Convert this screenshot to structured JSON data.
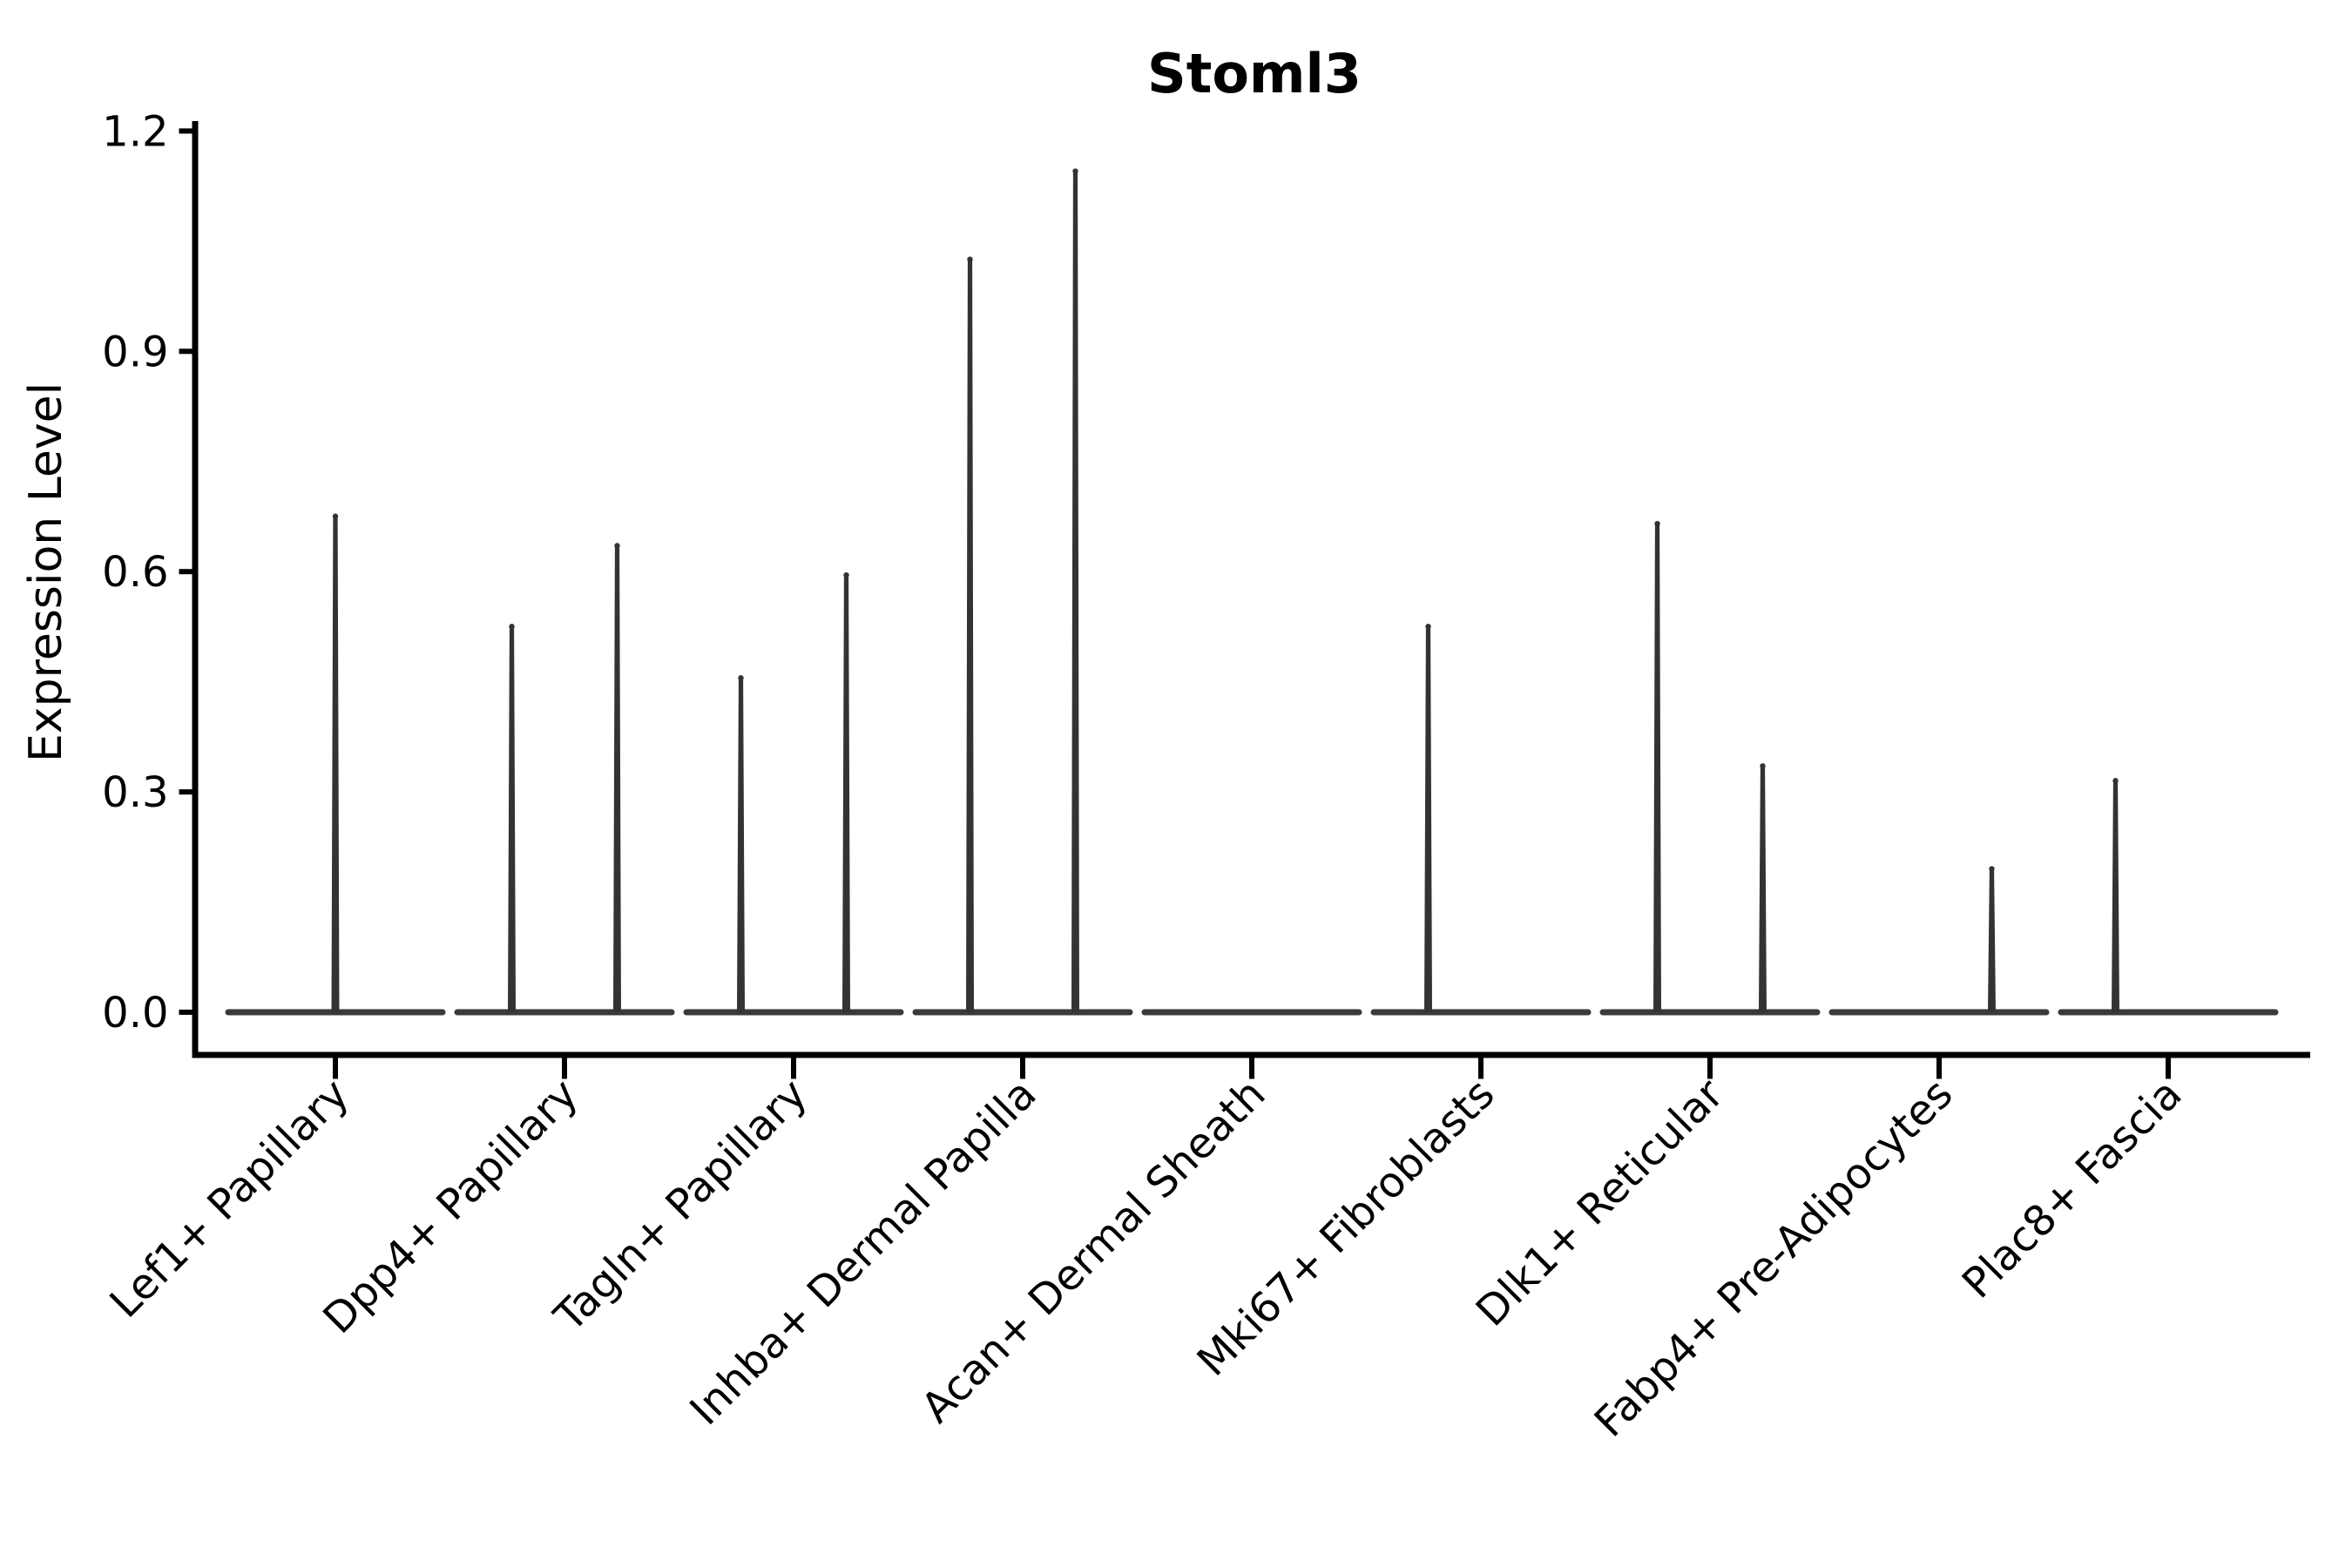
{
  "figure": {
    "background_color": "#ffffff",
    "axis_color": "#000000",
    "violin_color": "#333333",
    "baseline_color": "#3a3a3a"
  },
  "chart_data": {
    "type": "violin",
    "title": "Stoml3",
    "xlabel": "",
    "ylabel": "Expression Level",
    "ylim": [
      0.0,
      1.2
    ],
    "yticks": [
      "0.0",
      "0.3",
      "0.6",
      "0.9",
      "1.2"
    ],
    "grid": false,
    "legend": false,
    "x_tick_rotation_degrees": 45,
    "categories": [
      "Lef1+ Papillary",
      "Dpp4+ Papillary",
      "Tagln+ Papillary",
      "Inhba+ Dermal Papilla",
      "Acan+ Dermal Sheath",
      "Mki67+ Fibroblasts",
      "Dlk1+ Reticular",
      "Fabp4+ Pre-Adipocytes",
      "Plac8+ Fascia"
    ],
    "violins": [
      {
        "category": "Lef1+ Papillary",
        "base_value": 0.0,
        "spikes": [
          {
            "offset": 0.0,
            "max": 0.68
          }
        ]
      },
      {
        "category": "Dpp4+ Papillary",
        "base_value": 0.0,
        "spikes": [
          {
            "offset": -0.23,
            "max": 0.53
          },
          {
            "offset": 0.23,
            "max": 0.64
          }
        ]
      },
      {
        "category": "Tagln+ Papillary",
        "base_value": 0.0,
        "spikes": [
          {
            "offset": -0.23,
            "max": 0.46
          },
          {
            "offset": 0.23,
            "max": 0.6
          }
        ]
      },
      {
        "category": "Inhba+ Dermal Papilla",
        "base_value": 0.0,
        "spikes": [
          {
            "offset": -0.23,
            "max": 1.03
          },
          {
            "offset": 0.23,
            "max": 1.15
          }
        ]
      },
      {
        "category": "Acan+ Dermal Sheath",
        "base_value": 0.0,
        "spikes": []
      },
      {
        "category": "Mki67+ Fibroblasts",
        "base_value": 0.0,
        "spikes": [
          {
            "offset": -0.23,
            "max": 0.53
          }
        ]
      },
      {
        "category": "Dlk1+ Reticular",
        "base_value": 0.0,
        "spikes": [
          {
            "offset": -0.23,
            "max": 0.67
          },
          {
            "offset": 0.23,
            "max": 0.34
          }
        ]
      },
      {
        "category": "Fabp4+ Pre-Adipocytes",
        "base_value": 0.0,
        "spikes": [
          {
            "offset": 0.23,
            "max": 0.2
          }
        ]
      },
      {
        "category": "Plac8+ Fascia",
        "base_value": 0.0,
        "spikes": [
          {
            "offset": -0.23,
            "max": 0.32
          }
        ]
      }
    ]
  }
}
